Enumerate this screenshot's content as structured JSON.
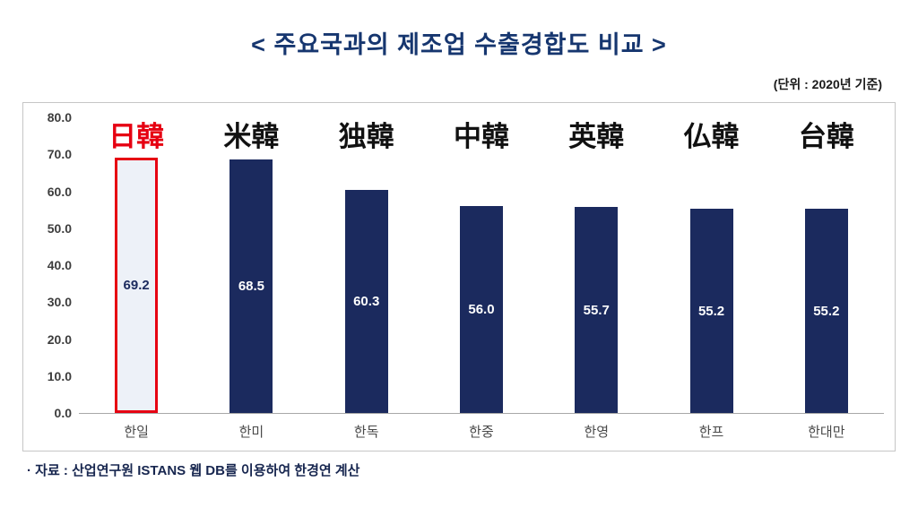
{
  "title": "< 주요국과의 제조업 수출경합도 비교 >",
  "unit_note": "(단위 : 2020년 기준)",
  "source_note": "· 자료 : 산업연구원 ISTANS 웹 DB를 이용하여 한경연 계산",
  "colors": {
    "title": "#16366f",
    "bar": "#1b2a5e",
    "highlight_border": "#e60012",
    "highlight_fill": "#edf1f8"
  },
  "chart_data": {
    "type": "bar",
    "title": "주요국과의 제조업 수출경합도 비교",
    "categories": [
      "한일",
      "한미",
      "한독",
      "한중",
      "한영",
      "한프",
      "한대만"
    ],
    "top_labels": [
      "日韓",
      "米韓",
      "独韓",
      "中韓",
      "英韓",
      "仏韓",
      "台韓"
    ],
    "values": [
      69.2,
      68.5,
      60.3,
      56.0,
      55.7,
      55.2,
      55.2
    ],
    "highlight_index": 0,
    "ylim": [
      0,
      80
    ],
    "yticks": [
      "80.0",
      "70.0",
      "60.0",
      "50.0",
      "40.0",
      "30.0",
      "20.0",
      "10.0",
      "0.0"
    ],
    "grid": false,
    "legend": "none"
  }
}
